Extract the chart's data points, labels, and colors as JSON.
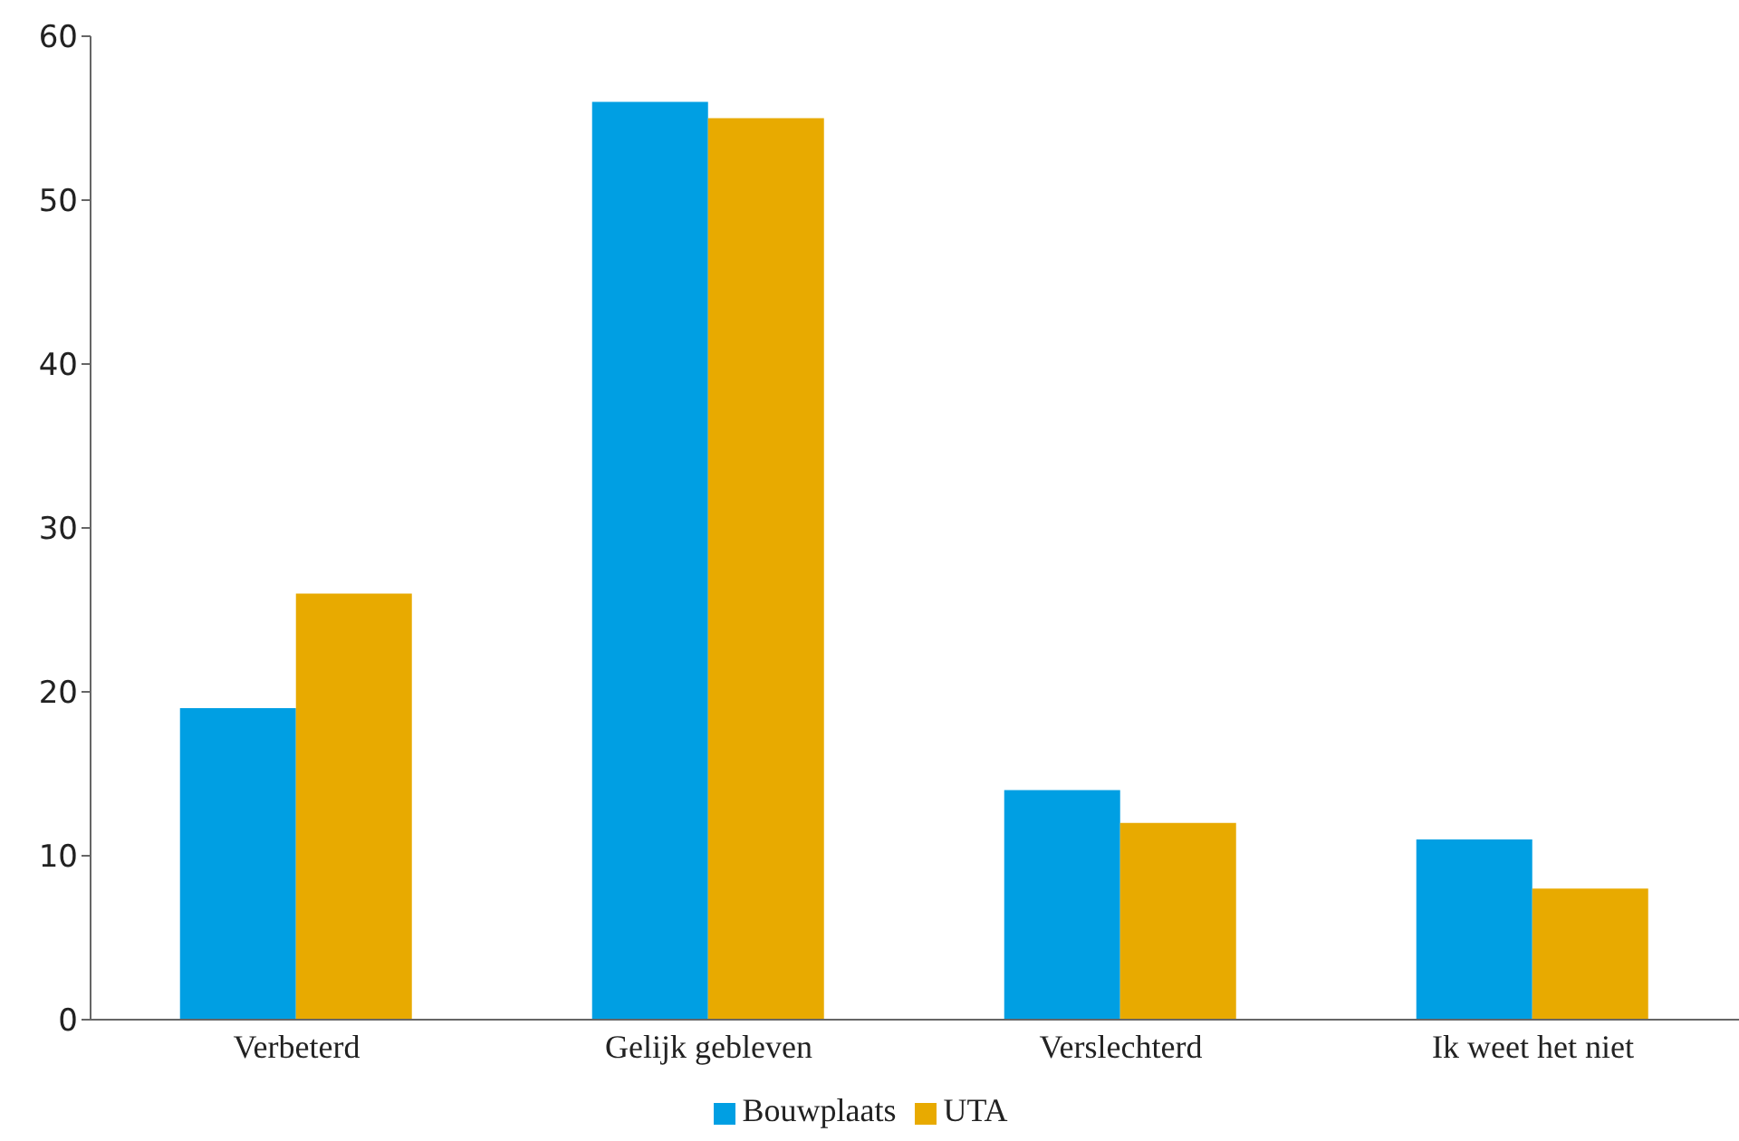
{
  "chart_data": {
    "type": "bar",
    "categories": [
      "Verbeterd",
      "Gelijk gebleven",
      "Verslechterd",
      "Ik weet het niet"
    ],
    "series": [
      {
        "name": "Bouwplaats",
        "color": "#009fe3",
        "values": [
          19,
          56,
          14,
          11
        ]
      },
      {
        "name": "UTA",
        "color": "#e8aa00",
        "values": [
          26,
          55,
          12,
          8
        ]
      }
    ],
    "ylim": [
      0,
      60
    ],
    "yticks": [
      0,
      10,
      20,
      30,
      40,
      50,
      60
    ],
    "grid": false,
    "legend": "bottom"
  }
}
